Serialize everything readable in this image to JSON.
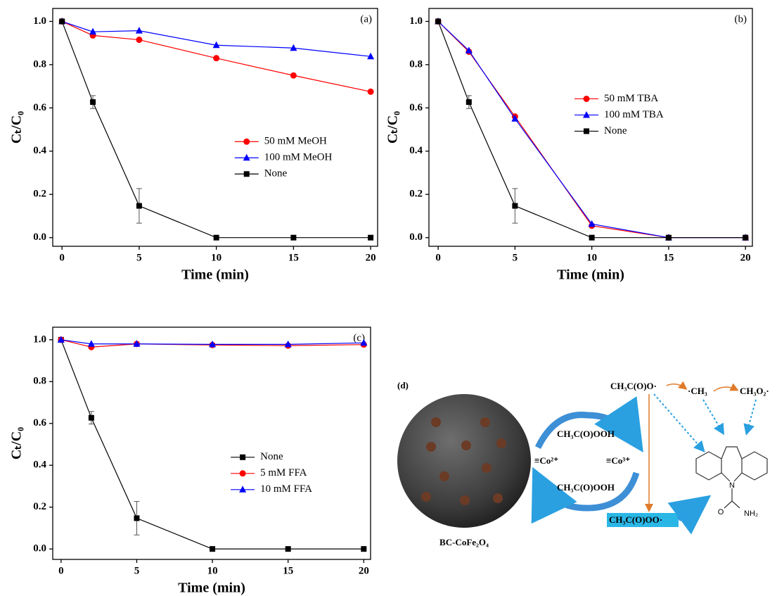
{
  "chart_data": [
    {
      "type": "line",
      "annotation": "(a)",
      "xlabel": "Time (min)",
      "ylabel": "Cₜ/C₀",
      "x": [
        0,
        2,
        5,
        10,
        15,
        20
      ],
      "series": [
        {
          "name": "50 mM MeOH",
          "color": "#ff0000",
          "marker": "circle",
          "values": [
            1.0,
            0.935,
            0.915,
            0.83,
            0.75,
            0.675
          ]
        },
        {
          "name": "100 mM MeOH",
          "color": "#0000ff",
          "marker": "triangle",
          "values": [
            1.0,
            0.952,
            0.957,
            0.89,
            0.877,
            0.838
          ]
        },
        {
          "name": "None",
          "color": "#000000",
          "marker": "square",
          "values": [
            1.0,
            0.627,
            0.147,
            0.0,
            0.0,
            0.0
          ],
          "errors": [
            0,
            0.03,
            0.08,
            0,
            0,
            0
          ]
        }
      ],
      "xlim": [
        -0.6,
        20.45
      ],
      "xticks": [
        0,
        5,
        10,
        15,
        20
      ],
      "ylim": [
        -0.04,
        1.06
      ],
      "yticks": [
        {
          "value": 0,
          "label": "0.0"
        },
        0.2,
        0.4,
        0.6,
        0.8,
        {
          "value": 1,
          "label": "1.0"
        }
      ],
      "legend": "center right"
    },
    {
      "type": "line",
      "annotation": "(b)",
      "xlabel": "Time (min)",
      "ylabel": "Cₜ/C₀",
      "x": [
        0,
        2,
        5,
        10,
        15,
        20
      ],
      "series": [
        {
          "name": "50 mM TBA",
          "color": "#ff0000",
          "marker": "circle",
          "values": [
            1.0,
            0.86,
            0.56,
            0.055,
            0.0,
            0.0
          ]
        },
        {
          "name": "100 mM TBA",
          "color": "#0000ff",
          "marker": "triangle",
          "values": [
            1.0,
            0.865,
            0.55,
            0.063,
            0.0,
            0.0
          ]
        },
        {
          "name": "None",
          "color": "#000000",
          "marker": "square",
          "values": [
            1.0,
            0.627,
            0.147,
            0.0,
            0.0,
            0.0
          ],
          "errors": [
            0,
            0.03,
            0.08,
            0,
            0,
            0
          ]
        }
      ],
      "xlim": [
        -0.6,
        20.45
      ],
      "xticks": [
        0,
        5,
        10,
        15,
        20
      ],
      "ylim": [
        -0.04,
        1.06
      ],
      "yticks": [
        {
          "value": 0,
          "label": "0.0"
        },
        0.2,
        0.4,
        0.6,
        0.8,
        {
          "value": 1,
          "label": "1.0"
        }
      ],
      "legend": "center"
    },
    {
      "type": "line",
      "annotation": "(c)",
      "xlabel": "Time (min)",
      "ylabel": "Cₜ/C₀",
      "x": [
        0,
        2,
        5,
        10,
        15,
        20
      ],
      "series": [
        {
          "name": "None",
          "color": "#000000",
          "marker": "square",
          "values": [
            1.0,
            0.627,
            0.147,
            0.0,
            0.0,
            0.0
          ],
          "errors": [
            0,
            0.03,
            0.08,
            0,
            0,
            0
          ]
        },
        {
          "name": "5 mM FFA",
          "color": "#ff0000",
          "marker": "circle",
          "values": [
            1.0,
            0.965,
            0.98,
            0.975,
            0.972,
            0.977
          ]
        },
        {
          "name": "10 mM FFA",
          "color": "#0000ff",
          "marker": "triangle",
          "values": [
            1.0,
            0.98,
            0.98,
            0.978,
            0.978,
            0.985
          ]
        }
      ],
      "xlim": [
        -0.55,
        20.45
      ],
      "xticks": [
        0,
        5,
        10,
        15,
        20
      ],
      "ylim": [
        -0.05,
        1.06
      ],
      "yticks": [
        {
          "value": 0,
          "label": "0.0"
        },
        0.2,
        0.4,
        0.6,
        0.8,
        {
          "value": 1,
          "label": "1.0"
        }
      ],
      "legend": "center right"
    }
  ],
  "diagram": {
    "label": "(d)",
    "catalyst": "BC-CoFe₂O₄",
    "radical_1": "CH₃C(O)O·",
    "radical_2": "·CH₃",
    "radical_3": "CH₃O₂·",
    "oxidant_top": "CH₃C(O)OOH",
    "oxidant_bottom": "CH₃C(O)OOH",
    "cobalt_2": "≡Co²⁺",
    "cobalt_3": "≡Co³⁺",
    "radical_4": "CH₃C(O)OO·",
    "atom_n": "N",
    "atom_o": "O",
    "group_nh2": "NH₂"
  }
}
